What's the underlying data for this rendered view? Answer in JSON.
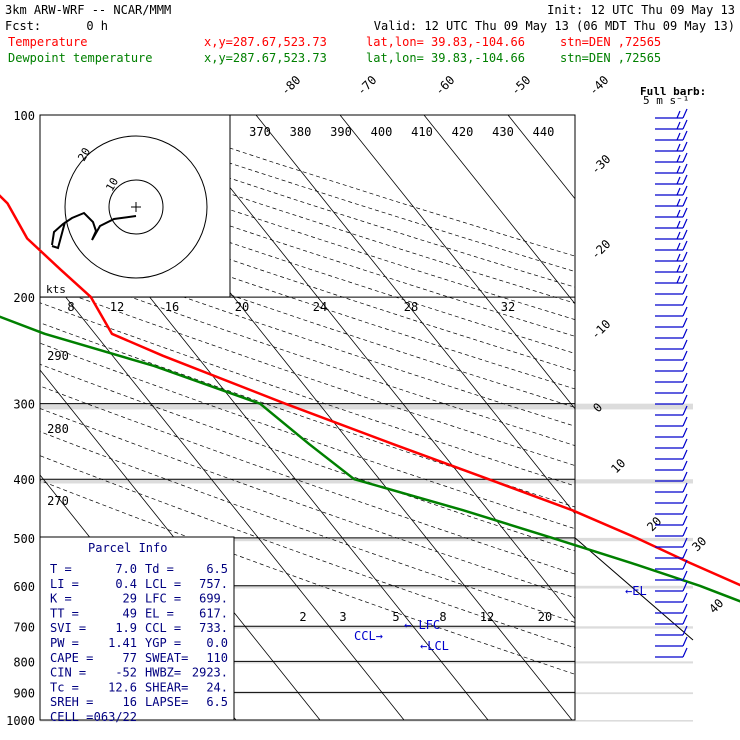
{
  "header": {
    "model": "3km ARW-WRF -- NCAR/MMM",
    "init": "Init: 12 UTC Thu 09 May 13",
    "fcst_label": "Fcst:",
    "fcst_value": "0 h",
    "valid": "Valid: 12 UTC Thu 09 May 13 (06 MDT Thu 09 May 13)"
  },
  "legend": [
    {
      "name": "Temperature",
      "color": "#ff0000",
      "xy": "x,y=287.67,523.73",
      "latlon": "lat,lon= 39.83,-104.66",
      "stn": "stn=DEN ,72565"
    },
    {
      "name": "Dewpoint temperature",
      "color": "#008000",
      "xy": "x,y=287.67,523.73",
      "latlon": "lat,lon= 39.83,-104.66",
      "stn": "stn=DEN ,72565"
    }
  ],
  "barb_note": {
    "line1": "Full barb:",
    "line2": "5 m s⁻¹"
  },
  "hodograph": {
    "unit_label": "kts",
    "speed_labels": [
      "8",
      "12",
      "16",
      "20",
      "24",
      "28",
      "32"
    ]
  },
  "parcel_info": {
    "title": "Parcel Info",
    "rows": [
      [
        "T  =",
        "7.0",
        "Td =",
        "6.5"
      ],
      [
        "LI =",
        "0.4",
        "LCL =",
        "757."
      ],
      [
        "K  =",
        "29",
        "LFC =",
        "699."
      ],
      [
        "TT =",
        "49",
        "EL =",
        "617."
      ],
      [
        "SVI =",
        "1.9",
        "CCL =",
        "733."
      ],
      [
        "PW =",
        "1.41",
        "YGP =",
        "0.0"
      ],
      [
        "CAPE =",
        "77",
        "SWEAT=",
        "110"
      ],
      [
        "CIN =",
        "-52",
        "HWBZ=",
        "2923."
      ],
      [
        "Tc =",
        "12.6",
        "SHEAR=",
        "24."
      ],
      [
        "SREH =",
        "16",
        "LAPSE=",
        "6.5"
      ],
      [
        "CELL =",
        "063/22",
        "",
        ""
      ]
    ]
  },
  "level_labels": {
    "lfc": "LFC",
    "lcl": "LCL",
    "ccl": "CCL",
    "el": "EL"
  },
  "colors": {
    "temperature": "#ff0000",
    "dewpoint": "#008000",
    "grid": "#000000",
    "adiabat": "#000000",
    "mixing": "#000000",
    "text": "#000000",
    "barb": "#0000cc",
    "panel_text": "#000080"
  },
  "chart_data": {
    "type": "line",
    "title": "",
    "xlabel": "",
    "ylabel": "",
    "ylim": [
      1000,
      100
    ],
    "y_scale": "log (pressure, hPa)",
    "pressure_ticks": [
      100,
      200,
      300,
      400,
      500,
      600,
      700,
      800,
      900,
      1000
    ],
    "isotherm_labels": [
      -80,
      -70,
      -60,
      -50,
      -40,
      -30,
      -20,
      -10,
      0,
      10,
      20,
      30,
      40
    ],
    "theta_labels": [
      370,
      380,
      390,
      400,
      410,
      420,
      430,
      440
    ],
    "theta_labels_low": [
      290,
      280,
      270
    ],
    "mixing_ratio_labels": [
      2,
      3,
      5,
      8,
      12,
      20
    ],
    "series": [
      {
        "name": "Temperature",
        "points": [
          [
            840,
            6.5
          ],
          [
            800,
            4.5
          ],
          [
            757,
            1.5
          ],
          [
            700,
            -1
          ],
          [
            650,
            -4
          ],
          [
            600,
            -7
          ],
          [
            550,
            -11
          ],
          [
            500,
            -15
          ],
          [
            450,
            -20
          ],
          [
            400,
            -27
          ],
          [
            350,
            -35
          ],
          [
            300,
            -44
          ],
          [
            250,
            -54
          ],
          [
            230,
            -58
          ],
          [
            200,
            -57
          ],
          [
            180,
            -58
          ],
          [
            160,
            -59
          ],
          [
            140,
            -58
          ],
          [
            120,
            -59
          ],
          [
            100,
            -64
          ]
        ]
      },
      {
        "name": "Dewpoint temperature",
        "points": [
          [
            840,
            6
          ],
          [
            800,
            3
          ],
          [
            757,
            0.5
          ],
          [
            700,
            -3
          ],
          [
            650,
            -7.5
          ],
          [
            600,
            -12
          ],
          [
            550,
            -18
          ],
          [
            500,
            -25
          ],
          [
            450,
            -33
          ],
          [
            400,
            -43
          ],
          [
            350,
            -45
          ],
          [
            300,
            -47
          ],
          [
            260,
            -56
          ],
          [
            230,
            -66
          ],
          [
            200,
            -74
          ],
          [
            170,
            -80
          ],
          [
            150,
            -81
          ],
          [
            130,
            -78
          ],
          [
            110,
            -79
          ],
          [
            100,
            -80
          ]
        ]
      }
    ]
  }
}
